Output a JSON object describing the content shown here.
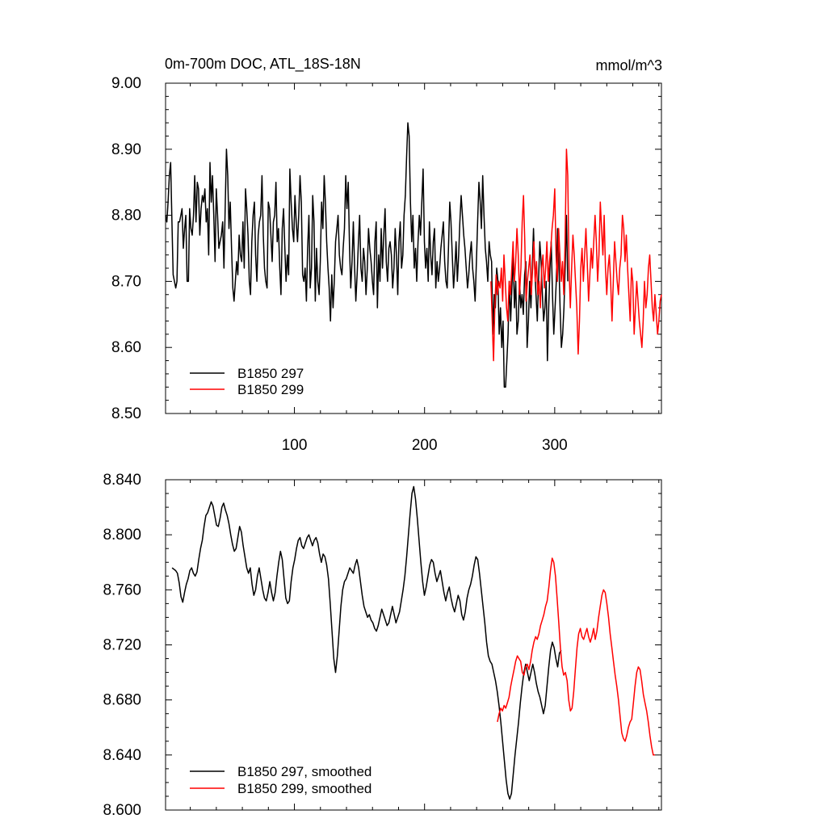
{
  "chart_data": [
    {
      "type": "line",
      "title": "0m-700m DOC, ATL_18S-18N",
      "units": "mmol/m^3",
      "xlim": [
        1,
        382
      ],
      "ylim": [
        8.5,
        9.0
      ],
      "x_ticks": [
        100,
        200,
        300
      ],
      "y_ticks": [
        "8.50",
        "8.60",
        "8.70",
        "8.80",
        "8.90",
        "9.00"
      ],
      "x_start": 1,
      "legend_position": "bottom-left",
      "grid": false,
      "series": [
        {
          "name": "B1850 297",
          "color": "#000000",
          "x_range": [
            1,
            310
          ],
          "values": [
            8.8,
            8.79,
            8.82,
            8.86,
            8.88,
            8.79,
            8.71,
            8.7,
            8.69,
            8.7,
            8.79,
            8.79,
            8.8,
            8.81,
            8.75,
            8.78,
            8.8,
            8.7,
            8.7,
            8.81,
            8.78,
            8.77,
            8.8,
            8.86,
            8.79,
            8.85,
            8.84,
            8.77,
            8.81,
            8.83,
            8.82,
            8.84,
            8.79,
            8.81,
            8.74,
            8.88,
            8.82,
            8.86,
            8.8,
            8.73,
            8.84,
            8.8,
            8.75,
            8.76,
            8.77,
            8.79,
            8.72,
            8.81,
            8.9,
            8.86,
            8.78,
            8.82,
            8.75,
            8.69,
            8.67,
            8.7,
            8.73,
            8.71,
            8.77,
            8.74,
            8.73,
            8.79,
            8.72,
            8.84,
            8.81,
            8.77,
            8.7,
            8.68,
            8.76,
            8.8,
            8.82,
            8.74,
            8.7,
            8.77,
            8.79,
            8.8,
            8.86,
            8.77,
            8.72,
            8.7,
            8.69,
            8.82,
            8.81,
            8.77,
            8.73,
            8.79,
            8.8,
            8.85,
            8.76,
            8.78,
            8.72,
            8.68,
            8.78,
            8.81,
            8.75,
            8.7,
            8.74,
            8.71,
            8.87,
            8.82,
            8.78,
            8.76,
            8.83,
            8.79,
            8.76,
            8.8,
            8.86,
            8.82,
            8.71,
            8.7,
            8.72,
            8.67,
            8.75,
            8.8,
            8.69,
            8.72,
            8.83,
            8.79,
            8.67,
            8.75,
            8.7,
            8.68,
            8.73,
            8.82,
            8.78,
            8.86,
            8.82,
            8.76,
            8.72,
            8.69,
            8.64,
            8.71,
            8.66,
            8.7,
            8.76,
            8.78,
            8.8,
            8.74,
            8.72,
            8.71,
            8.75,
            8.78,
            8.86,
            8.81,
            8.85,
            8.75,
            8.69,
            8.73,
            8.79,
            8.72,
            8.67,
            8.71,
            8.76,
            8.8,
            8.72,
            8.7,
            8.75,
            8.73,
            8.68,
            8.72,
            8.78,
            8.75,
            8.73,
            8.7,
            8.68,
            8.76,
            8.79,
            8.66,
            8.74,
            8.7,
            8.78,
            8.72,
            8.77,
            8.81,
            8.73,
            8.7,
            8.75,
            8.76,
            8.74,
            8.69,
            8.72,
            8.78,
            8.74,
            8.68,
            8.76,
            8.79,
            8.72,
            8.74,
            8.8,
            8.83,
            8.89,
            8.94,
            8.92,
            8.82,
            8.76,
            8.8,
            8.72,
            8.75,
            8.7,
            8.76,
            8.8,
            8.77,
            8.82,
            8.87,
            8.76,
            8.72,
            8.75,
            8.7,
            8.79,
            8.74,
            8.71,
            8.76,
            8.78,
            8.69,
            8.73,
            8.7,
            8.72,
            8.75,
            8.77,
            8.79,
            8.73,
            8.7,
            8.69,
            8.75,
            8.82,
            8.79,
            8.74,
            8.69,
            8.72,
            8.76,
            8.7,
            8.74,
            8.79,
            8.83,
            8.8,
            8.77,
            8.75,
            8.72,
            8.69,
            8.71,
            8.74,
            8.76,
            8.72,
            8.7,
            8.67,
            8.73,
            8.79,
            8.85,
            8.82,
            8.78,
            8.86,
            8.8,
            8.75,
            8.73,
            8.7,
            8.76,
            8.74,
            8.73,
            8.62,
            8.68,
            8.66,
            8.72,
            8.7,
            8.62,
            8.66,
            8.6,
            8.64,
            8.54,
            8.54,
            8.58,
            8.62,
            8.7,
            8.64,
            8.69,
            8.74,
            8.66,
            8.7,
            8.62,
            8.64,
            8.7,
            8.66,
            8.68,
            8.65,
            8.71,
            8.73,
            8.6,
            8.64,
            8.7,
            8.66,
            8.72,
            8.78,
            8.72,
            8.68,
            8.64,
            8.7,
            8.76,
            8.73,
            8.68,
            8.64,
            8.66,
            8.7,
            8.58,
            8.66,
            8.72,
            8.76,
            8.68,
            8.62,
            8.66,
            8.7,
            8.78,
            8.73,
            8.66,
            8.6,
            8.62,
            8.66,
            8.72,
            8.8,
            8.7
          ]
        },
        {
          "name": "B1850 299",
          "color": "#ff0000",
          "x_range": [
            251,
            382
          ],
          "values": [
            8.7,
            8.64,
            8.58,
            8.66,
            8.71,
            8.68,
            8.7,
            8.69,
            8.72,
            8.67,
            8.74,
            8.7,
            8.66,
            8.64,
            8.7,
            8.68,
            8.72,
            8.76,
            8.7,
            8.73,
            8.78,
            8.74,
            8.68,
            8.72,
            8.79,
            8.83,
            8.76,
            8.67,
            8.7,
            8.72,
            8.74,
            8.68,
            8.72,
            8.76,
            8.7,
            8.73,
            8.68,
            8.7,
            8.66,
            8.72,
            8.74,
            8.69,
            8.72,
            8.76,
            8.7,
            8.73,
            8.75,
            8.78,
            8.8,
            8.84,
            8.74,
            8.7,
            8.78,
            8.74,
            8.7,
            8.73,
            8.68,
            8.76,
            8.9,
            8.86,
            8.72,
            8.66,
            8.72,
            8.77,
            8.74,
            8.7,
            8.66,
            8.59,
            8.64,
            8.72,
            8.75,
            8.7,
            8.74,
            8.78,
            8.73,
            8.67,
            8.71,
            8.75,
            8.72,
            8.76,
            8.8,
            8.76,
            8.7,
            8.74,
            8.82,
            8.78,
            8.74,
            8.8,
            8.72,
            8.68,
            8.72,
            8.74,
            8.7,
            8.64,
            8.7,
            8.76,
            8.73,
            8.7,
            8.68,
            8.72,
            8.74,
            8.8,
            8.78,
            8.73,
            8.77,
            8.72,
            8.68,
            8.64,
            8.72,
            8.7,
            8.62,
            8.66,
            8.7,
            8.67,
            8.64,
            8.62,
            8.6,
            8.64,
            8.7,
            8.66,
            8.68,
            8.72,
            8.74,
            8.7,
            8.66,
            8.64,
            8.68,
            8.65,
            8.62,
            8.64,
            8.67,
            8.68
          ]
        }
      ]
    },
    {
      "type": "line",
      "xlim": [
        1,
        382
      ],
      "ylim": [
        8.6,
        8.84
      ],
      "y_ticks": [
        "8.600",
        "8.640",
        "8.680",
        "8.720",
        "8.760",
        "8.800",
        "8.840"
      ],
      "legend_position": "bottom-left",
      "grid": false,
      "series": [
        {
          "name": "B1850 297, smoothed",
          "color": "#000000",
          "x_range": [
            6,
            305
          ],
          "values": [
            8.776,
            8.775,
            8.774,
            8.772,
            8.765,
            8.755,
            8.751,
            8.758,
            8.764,
            8.768,
            8.774,
            8.776,
            8.772,
            8.77,
            8.773,
            8.782,
            8.79,
            8.796,
            8.806,
            8.814,
            8.816,
            8.82,
            8.824,
            8.821,
            8.814,
            8.807,
            8.806,
            8.812,
            8.82,
            8.823,
            8.818,
            8.814,
            8.808,
            8.8,
            8.793,
            8.788,
            8.79,
            8.798,
            8.806,
            8.802,
            8.792,
            8.784,
            8.776,
            8.772,
            8.776,
            8.764,
            8.756,
            8.76,
            8.77,
            8.776,
            8.768,
            8.76,
            8.754,
            8.752,
            8.758,
            8.766,
            8.758,
            8.752,
            8.758,
            8.77,
            8.78,
            8.788,
            8.782,
            8.768,
            8.754,
            8.75,
            8.752,
            8.766,
            8.776,
            8.782,
            8.79,
            8.796,
            8.798,
            8.792,
            8.79,
            8.794,
            8.798,
            8.8,
            8.796,
            8.792,
            8.796,
            8.798,
            8.794,
            8.786,
            8.78,
            8.786,
            8.784,
            8.778,
            8.768,
            8.75,
            8.73,
            8.71,
            8.7,
            8.712,
            8.73,
            8.748,
            8.76,
            8.766,
            8.768,
            8.772,
            8.776,
            8.774,
            8.772,
            8.778,
            8.782,
            8.776,
            8.766,
            8.756,
            8.748,
            8.744,
            8.74,
            8.742,
            8.738,
            8.736,
            8.732,
            8.73,
            8.734,
            8.74,
            8.746,
            8.742,
            8.738,
            8.734,
            8.736,
            8.742,
            8.748,
            8.742,
            8.736,
            8.74,
            8.744,
            8.752,
            8.76,
            8.77,
            8.784,
            8.8,
            8.816,
            8.83,
            8.835,
            8.826,
            8.812,
            8.796,
            8.78,
            8.766,
            8.756,
            8.762,
            8.77,
            8.778,
            8.782,
            8.78,
            8.772,
            8.766,
            8.77,
            8.774,
            8.766,
            8.758,
            8.752,
            8.758,
            8.762,
            8.754,
            8.748,
            8.744,
            8.75,
            8.756,
            8.752,
            8.742,
            8.738,
            8.744,
            8.754,
            8.76,
            8.764,
            8.77,
            8.778,
            8.784,
            8.782,
            8.772,
            8.76,
            8.748,
            8.736,
            8.722,
            8.712,
            8.708,
            8.706,
            8.7,
            8.694,
            8.686,
            8.676,
            8.664,
            8.65,
            8.636,
            8.622,
            8.612,
            8.608,
            8.612,
            8.626,
            8.64,
            8.652,
            8.664,
            8.678,
            8.69,
            8.7,
            8.706,
            8.7,
            8.694,
            8.7,
            8.706,
            8.7,
            8.692,
            8.686,
            8.682,
            8.676,
            8.67,
            8.676,
            8.69,
            8.704,
            8.716,
            8.722,
            8.718,
            8.71,
            8.704,
            8.714,
            8.716
          ]
        },
        {
          "name": "B1850 299, smoothed",
          "color": "#ff0000",
          "x_range": [
            256,
            377
          ],
          "values": [
            8.664,
            8.67,
            8.674,
            8.672,
            8.676,
            8.674,
            8.678,
            8.682,
            8.69,
            8.696,
            8.702,
            8.708,
            8.712,
            8.71,
            8.708,
            8.7,
            8.698,
            8.704,
            8.706,
            8.702,
            8.708,
            8.716,
            8.722,
            8.726,
            8.724,
            8.728,
            8.734,
            8.738,
            8.742,
            8.748,
            8.752,
            8.762,
            8.774,
            8.783,
            8.78,
            8.77,
            8.754,
            8.736,
            8.718,
            8.704,
            8.698,
            8.7,
            8.694,
            8.68,
            8.672,
            8.674,
            8.686,
            8.702,
            8.718,
            8.728,
            8.732,
            8.726,
            8.724,
            8.728,
            8.732,
            8.726,
            8.722,
            8.726,
            8.732,
            8.724,
            8.73,
            8.74,
            8.748,
            8.756,
            8.76,
            8.758,
            8.75,
            8.74,
            8.728,
            8.718,
            8.708,
            8.698,
            8.69,
            8.68,
            8.668,
            8.656,
            8.652,
            8.65,
            8.654,
            8.66,
            8.664,
            8.666,
            8.678,
            8.69,
            8.7,
            8.704,
            8.702,
            8.694,
            8.684,
            8.678,
            8.672,
            8.664,
            8.654,
            8.646,
            8.64,
            8.64
          ]
        }
      ]
    }
  ]
}
